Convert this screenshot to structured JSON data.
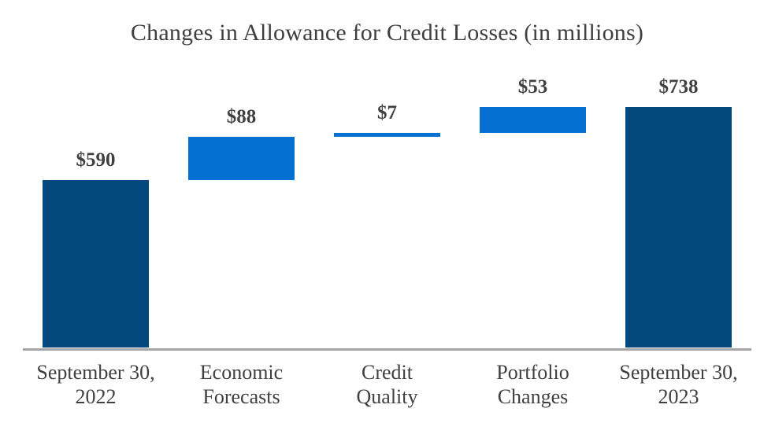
{
  "chart_data": {
    "type": "bar",
    "subtype": "waterfall",
    "title": "Changes in Allowance for Credit Losses (in millions)",
    "categories": [
      "September 30,\n2022",
      "Economic\nForecasts",
      "Credit\nQuality",
      "Portfolio\nChanges",
      "September 30,\n2023"
    ],
    "bars": [
      {
        "category": "September 30, 2022",
        "value": 590,
        "kind": "total",
        "value_label": "$590"
      },
      {
        "category": "Economic Forecasts",
        "value": 88,
        "kind": "increase",
        "value_label": "$88"
      },
      {
        "category": "Credit Quality",
        "value": 7,
        "kind": "increase",
        "value_label": "$7"
      },
      {
        "category": "Portfolio Changes",
        "value": 53,
        "kind": "increase",
        "value_label": "$53"
      },
      {
        "category": "September 30, 2023",
        "value": 738,
        "kind": "total",
        "value_label": "$738"
      }
    ],
    "xlabel": "",
    "ylabel": "",
    "ylim": [
      250,
      750
    ],
    "grid": false,
    "legend_position": "none",
    "colors": {
      "total_bar": "#04497d",
      "delta_bar": "#0670d2",
      "label_text": "#404040",
      "title_text": "#3f3f3f",
      "axis_line": "#a6a6a6"
    }
  }
}
